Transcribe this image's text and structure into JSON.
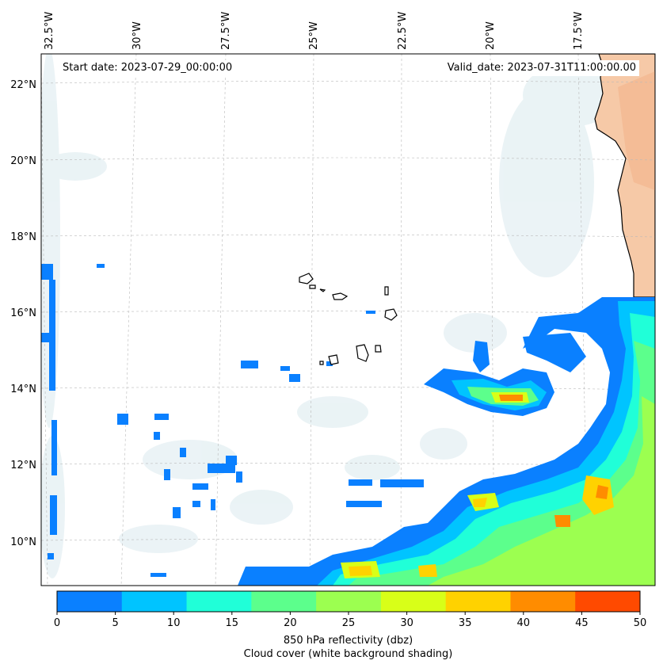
{
  "map": {
    "lon_labels": [
      "32.5°W",
      "30°W",
      "27.5°W",
      "25°W",
      "22.5°W",
      "20°W",
      "17.5°W"
    ],
    "lat_labels": [
      "22°N",
      "20°N",
      "18°N",
      "16°N",
      "14°N",
      "12°N",
      "10°N"
    ],
    "start_date": "Start date: 2023-07-29_00:00:00",
    "valid_date": "Valid_date: 2023-07-31T11:00:00.00"
  },
  "colorbar": {
    "ticks": [
      "0",
      "5",
      "10",
      "15",
      "20",
      "25",
      "30",
      "35",
      "40",
      "45",
      "50"
    ],
    "colors": [
      "#0a80ff",
      "#00c4ff",
      "#20ffd8",
      "#5cff8c",
      "#9cff50",
      "#d8ff18",
      "#ffd200",
      "#ff8c00",
      "#ff4a00"
    ],
    "label_line1": "850 hPa reflectivity (dbz)",
    "label_line2": "Cloud cover (white background shading)"
  }
}
